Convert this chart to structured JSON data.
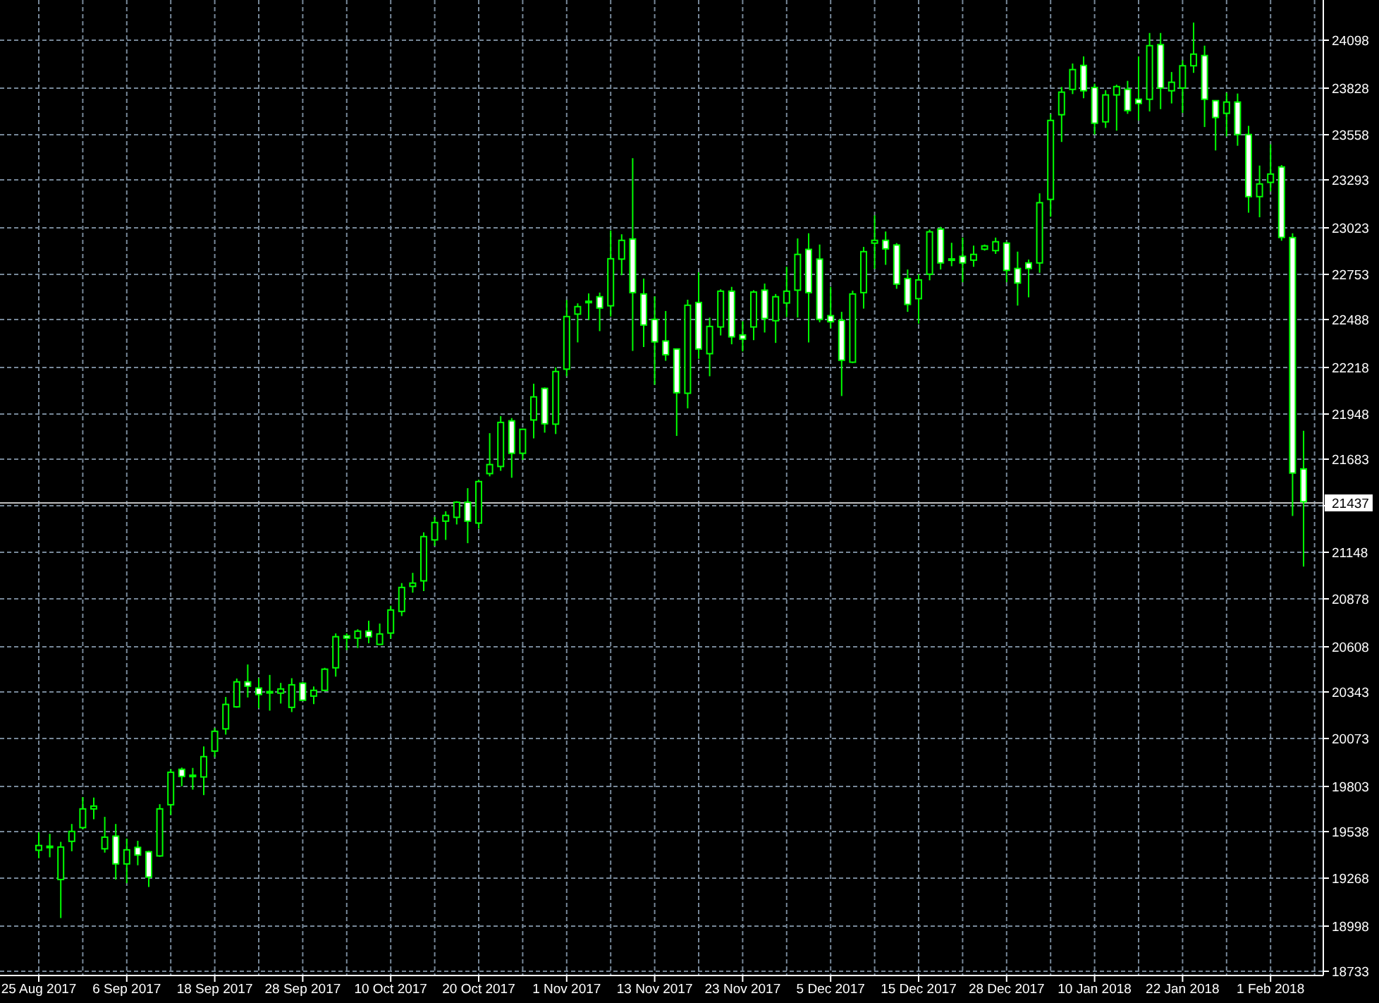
{
  "chart_data": {
    "type": "candlestick",
    "color": "#00ff00",
    "categories": [
      "25 Aug 2017",
      null,
      null,
      null,
      null,
      null,
      null,
      null,
      "6 Sep 2017",
      null,
      null,
      null,
      null,
      null,
      null,
      null,
      "18 Sep 2017",
      null,
      null,
      null,
      null,
      null,
      null,
      null,
      "28 Sep 2017",
      null,
      null,
      null,
      null,
      null,
      null,
      null,
      "10 Oct 2017",
      null,
      null,
      null,
      null,
      null,
      null,
      null,
      "20 Oct 2017",
      null,
      null,
      null,
      null,
      null,
      null,
      null,
      "1 Nov 2017",
      null,
      null,
      null,
      null,
      null,
      null,
      null,
      "13 Nov 2017",
      null,
      null,
      null,
      null,
      null,
      null,
      null,
      "23 Nov 2017",
      null,
      null,
      null,
      null,
      null,
      null,
      null,
      "5 Dec 2017",
      null,
      null,
      null,
      null,
      null,
      null,
      null,
      "15 Dec 2017",
      null,
      null,
      null,
      null,
      null,
      null,
      null,
      "28 Dec 2017",
      null,
      null,
      null,
      null,
      null,
      null,
      null,
      "10 Jan 2018",
      null,
      null,
      null,
      null,
      null,
      null,
      null,
      "22 Jan 2018",
      null,
      null,
      null,
      null,
      null,
      null,
      null,
      "1 Feb 2018",
      null,
      null,
      null
    ],
    "ohlc": [
      [
        19429,
        19532,
        19383,
        19456
      ],
      [
        19448,
        19523,
        19388,
        19452
      ],
      [
        19260,
        19477,
        19038,
        19447
      ],
      [
        19480,
        19580,
        19423,
        19537
      ],
      [
        19559,
        19735,
        19550,
        19667
      ],
      [
        19667,
        19732,
        19607,
        19683
      ],
      [
        19437,
        19621,
        19415,
        19504
      ],
      [
        19510,
        19580,
        19260,
        19350
      ],
      [
        19350,
        19496,
        19239,
        19431
      ],
      [
        19445,
        19483,
        19342,
        19401
      ],
      [
        19420,
        19425,
        19217,
        19274
      ],
      [
        19396,
        19694,
        19391,
        19667
      ],
      [
        19691,
        19895,
        19632,
        19878
      ],
      [
        19895,
        19905,
        19797,
        19854
      ],
      [
        19858,
        19903,
        19778,
        19861
      ],
      [
        19851,
        20027,
        19746,
        19968
      ],
      [
        20000,
        20133,
        19965,
        20114
      ],
      [
        20128,
        20312,
        20095,
        20269
      ],
      [
        20255,
        20418,
        20250,
        20399
      ],
      [
        20399,
        20499,
        20309,
        20374
      ],
      [
        20363,
        20420,
        20247,
        20326
      ],
      [
        20341,
        20439,
        20233,
        20343
      ],
      [
        20334,
        20393,
        20274,
        20358
      ],
      [
        20252,
        20420,
        20225,
        20382
      ],
      [
        20391,
        20399,
        20290,
        20293
      ],
      [
        20317,
        20372,
        20271,
        20350
      ],
      [
        20350,
        20480,
        20345,
        20472
      ],
      [
        20480,
        20678,
        20429,
        20659
      ],
      [
        20664,
        20678,
        20583,
        20651
      ],
      [
        20651,
        20702,
        20594,
        20691
      ],
      [
        20691,
        20751,
        20621,
        20659
      ],
      [
        20615,
        20735,
        20612,
        20675
      ],
      [
        20680,
        20838,
        20648,
        20813
      ],
      [
        20805,
        20968,
        20778,
        20943
      ],
      [
        20949,
        21027,
        20913,
        20968
      ],
      [
        20981,
        21260,
        20922,
        21236
      ],
      [
        21217,
        21350,
        21182,
        21317
      ],
      [
        21325,
        21382,
        21217,
        21358
      ],
      [
        21347,
        21440,
        21306,
        21434
      ],
      [
        21434,
        21515,
        21198,
        21325
      ],
      [
        21314,
        21564,
        21282,
        21553
      ],
      [
        21599,
        21832,
        21583,
        21651
      ],
      [
        21640,
        21930,
        21615,
        21894
      ],
      [
        21903,
        21919,
        21575,
        21716
      ],
      [
        21716,
        21858,
        21678,
        21854
      ],
      [
        21908,
        22117,
        21802,
        22041
      ],
      [
        22090,
        22095,
        21835,
        21886
      ],
      [
        21884,
        22211,
        21827,
        22187
      ],
      [
        22201,
        22599,
        22160,
        22504
      ],
      [
        22518,
        22580,
        22355,
        22561
      ],
      [
        22590,
        22637,
        22485,
        22592
      ],
      [
        22618,
        22642,
        22420,
        22553
      ],
      [
        22566,
        23000,
        22504,
        22837
      ],
      [
        22835,
        22978,
        22742,
        22943
      ],
      [
        22951,
        23417,
        22306,
        22642
      ],
      [
        22634,
        22723,
        22328,
        22455
      ],
      [
        22488,
        22620,
        22111,
        22358
      ],
      [
        22363,
        22536,
        22249,
        22284
      ],
      [
        22317,
        22320,
        21816,
        22065
      ],
      [
        22062,
        22601,
        21975,
        22569
      ],
      [
        22585,
        22759,
        22260,
        22317
      ],
      [
        22290,
        22498,
        22160,
        22447
      ],
      [
        22444,
        22661,
        22395,
        22650
      ],
      [
        22650,
        22675,
        22344,
        22387
      ],
      [
        22398,
        22477,
        22303,
        22374
      ],
      [
        22444,
        22656,
        22368,
        22645
      ],
      [
        22656,
        22694,
        22412,
        22493
      ],
      [
        22480,
        22634,
        22352,
        22618
      ],
      [
        22582,
        22791,
        22501,
        22650
      ],
      [
        22656,
        22954,
        22498,
        22862
      ],
      [
        22891,
        22984,
        22355,
        22642
      ],
      [
        22835,
        22919,
        22471,
        22488
      ],
      [
        22509,
        22675,
        22436,
        22474
      ],
      [
        22482,
        22531,
        22046,
        22252
      ],
      [
        22241,
        22653,
        22236,
        22634
      ],
      [
        22642,
        22905,
        22550,
        22878
      ],
      [
        22927,
        23087,
        22778,
        22943
      ],
      [
        22943,
        22994,
        22802,
        22894
      ],
      [
        22916,
        22927,
        22664,
        22691
      ],
      [
        22723,
        22775,
        22531,
        22574
      ],
      [
        22607,
        22748,
        22463,
        22715
      ],
      [
        22748,
        23005,
        22713,
        22992
      ],
      [
        23008,
        23021,
        22775,
        22813
      ],
      [
        22834,
        22929,
        22794,
        22836
      ],
      [
        22851,
        22959,
        22702,
        22813
      ],
      [
        22829,
        22913,
        22791,
        22862
      ],
      [
        22892,
        22919,
        22884,
        22911
      ],
      [
        22884,
        22959,
        22865,
        22935
      ],
      [
        22927,
        22935,
        22702,
        22770
      ],
      [
        22781,
        22878,
        22567,
        22697
      ],
      [
        22813,
        22832,
        22615,
        22781
      ],
      [
        22813,
        23214,
        22756,
        23160
      ],
      [
        23179,
        23670,
        23079,
        23634
      ],
      [
        23667,
        23827,
        23510,
        23797
      ],
      [
        23813,
        23962,
        23786,
        23927
      ],
      [
        23951,
        24003,
        23762,
        23805
      ],
      [
        23824,
        23846,
        23553,
        23618
      ],
      [
        23626,
        23808,
        23591,
        23781
      ],
      [
        23781,
        23840,
        23575,
        23829
      ],
      [
        23813,
        23862,
        23672,
        23691
      ],
      [
        23756,
        24003,
        23634,
        23732
      ],
      [
        23756,
        24138,
        23686,
        24065
      ],
      [
        24071,
        24138,
        23699,
        23821
      ],
      [
        23805,
        23913,
        23732,
        23854
      ],
      [
        23821,
        23981,
        23678,
        23949
      ],
      [
        23949,
        24198,
        23908,
        24016
      ],
      [
        24008,
        24065,
        23596,
        23756
      ],
      [
        23748,
        23751,
        23461,
        23651
      ],
      [
        23675,
        23794,
        23542,
        23740
      ],
      [
        23740,
        23789,
        23488,
        23553
      ],
      [
        23553,
        23602,
        23103,
        23195
      ],
      [
        23195,
        23374,
        23076,
        23268
      ],
      [
        23277,
        23496,
        23225,
        23325
      ],
      [
        23366,
        23377,
        22941,
        22960
      ],
      [
        22959,
        22984,
        21355,
        21602
      ],
      [
        21626,
        21846,
        21063,
        21437
      ]
    ],
    "ylim": [
      18711,
      24328
    ],
    "yticks": [
      24098,
      23828,
      23558,
      23293,
      23023,
      22753,
      22488,
      22218,
      21948,
      21683,
      {
        "value": 21415,
        "label": null
      },
      21148,
      20878,
      20608,
      20343,
      20073,
      19803,
      19538,
      19268,
      18998,
      18733
    ],
    "grid": true,
    "ref_lines": [
      {
        "axis": "y",
        "value": 21437,
        "label": "21437",
        "color": "#c0c0c0"
      }
    ]
  }
}
